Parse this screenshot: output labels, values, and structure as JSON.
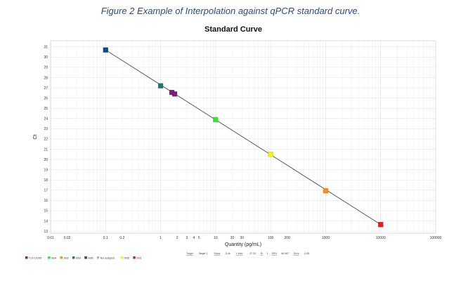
{
  "caption": "Figure 2 Example of Interpolation against qPCR standard curve.",
  "chart_data": {
    "type": "scatter",
    "title": "Standard Curve",
    "xlabel": "Quantity (pg/mL)",
    "ylabel": "Ct",
    "x_scale": "log",
    "xlim": [
      0.01,
      100000
    ],
    "ylim": [
      12.8,
      31.6
    ],
    "grid": true,
    "x_ticks": [
      {
        "value": 0.01,
        "label": "0.01"
      },
      {
        "value": 0.02,
        "label": "0.02"
      },
      {
        "value": 0.1,
        "label": "0.1"
      },
      {
        "value": 0.2,
        "label": "0.2"
      },
      {
        "value": 1,
        "label": "1"
      },
      {
        "value": 2,
        "label": "2"
      },
      {
        "value": 3,
        "label": "3"
      },
      {
        "value": 4,
        "label": "4"
      },
      {
        "value": 5,
        "label": "5"
      },
      {
        "value": 10,
        "label": "10"
      },
      {
        "value": 20,
        "label": "20"
      },
      {
        "value": 30,
        "label": "30"
      },
      {
        "value": 100,
        "label": "100"
      },
      {
        "value": 200,
        "label": "200"
      },
      {
        "value": 1000,
        "label": "1000"
      },
      {
        "value": 10000,
        "label": "10000"
      },
      {
        "value": 100000,
        "label": "100000"
      }
    ],
    "y_ticks": [
      13,
      14,
      15,
      16,
      17,
      18,
      19,
      20,
      21,
      22,
      23,
      24,
      25,
      26,
      27,
      28,
      29,
      30,
      31
    ],
    "fit_line": {
      "x": [
        0.1,
        10000
      ],
      "y": [
        30.7,
        13.65
      ],
      "color": "#555555"
    },
    "points": [
      {
        "x": 0.1,
        "y": 30.7,
        "color": "#0b4a86"
      },
      {
        "x": 1,
        "y": 27.2,
        "color": "#0f7b7b"
      },
      {
        "x": 1.6,
        "y": 26.55,
        "color": "#7a1f7a"
      },
      {
        "x": 1.8,
        "y": 26.4,
        "color": "#7a1f7a"
      },
      {
        "x": 10,
        "y": 23.9,
        "color": "#2ee82e"
      },
      {
        "x": 100,
        "y": 20.5,
        "color": "#f2f21a"
      },
      {
        "x": 1000,
        "y": 16.95,
        "color": "#f2902a"
      },
      {
        "x": 10000,
        "y": 13.65,
        "color": "#e21c1c"
      }
    ],
    "legend": {
      "placement": "bottom-left",
      "entries": [
        {
          "label": "T1 k 1/1000",
          "color": "#7a1f7a"
        },
        {
          "label": "Std4",
          "color": "#2ee82e"
        },
        {
          "label": "Std2",
          "color": "#f2902a"
        },
        {
          "label": "Std3",
          "color": "#0f7b7b"
        },
        {
          "label": "Std6",
          "color": "#0b4a86"
        },
        {
          "label": "Not assigned",
          "color": "#bbbbbb"
        },
        {
          "label": "Std5",
          "color": "#f2f21a"
        },
        {
          "label": "Std1",
          "color": "#e21c1c"
        }
      ]
    },
    "stats_line": [
      {
        "text": "Target",
        "link": true
      },
      {
        "text": "Target 1",
        "link": false
      },
      {
        "text": "Slope",
        "link": true
      },
      {
        "text": "-3.4x",
        "link": false
      },
      {
        "text": "Y-Inter",
        "link": true
      },
      {
        "text": "27.23",
        "link": false
      },
      {
        "text": "R²",
        "link": true
      },
      {
        "text": "1",
        "link": false
      },
      {
        "text": "Eff%",
        "link": true
      },
      {
        "text": "96.467",
        "link": false
      },
      {
        "text": "Error",
        "link": true
      },
      {
        "text": "0.05",
        "link": false
      }
    ]
  }
}
